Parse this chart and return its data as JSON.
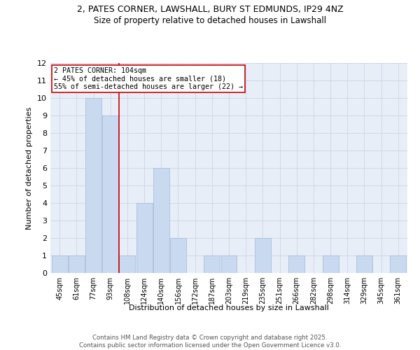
{
  "title1": "2, PATES CORNER, LAWSHALL, BURY ST EDMUNDS, IP29 4NZ",
  "title2": "Size of property relative to detached houses in Lawshall",
  "xlabel": "Distribution of detached houses by size in Lawshall",
  "ylabel": "Number of detached properties",
  "categories": [
    "45sqm",
    "61sqm",
    "77sqm",
    "93sqm",
    "108sqm",
    "124sqm",
    "140sqm",
    "156sqm",
    "172sqm",
    "187sqm",
    "203sqm",
    "219sqm",
    "235sqm",
    "251sqm",
    "266sqm",
    "282sqm",
    "298sqm",
    "314sqm",
    "329sqm",
    "345sqm",
    "361sqm"
  ],
  "values": [
    1,
    1,
    10,
    9,
    1,
    4,
    6,
    2,
    0,
    1,
    1,
    0,
    2,
    0,
    1,
    0,
    1,
    0,
    1,
    0,
    1
  ],
  "bar_color": "#c9d9f0",
  "bar_edgecolor": "#a0b8d8",
  "ylim": [
    0,
    12
  ],
  "yticks": [
    0,
    1,
    2,
    3,
    4,
    5,
    6,
    7,
    8,
    9,
    10,
    11,
    12
  ],
  "red_line_x": 3.5,
  "annotation_text": "2 PATES CORNER: 104sqm\n← 45% of detached houses are smaller (18)\n55% of semi-detached houses are larger (22) →",
  "annotation_box_color": "#ffffff",
  "annotation_box_edgecolor": "#cc0000",
  "red_line_color": "#cc0000",
  "grid_color": "#d0d8e8",
  "bg_color": "#e8eef8",
  "footer": "Contains HM Land Registry data © Crown copyright and database right 2025.\nContains public sector information licensed under the Open Government Licence v3.0."
}
